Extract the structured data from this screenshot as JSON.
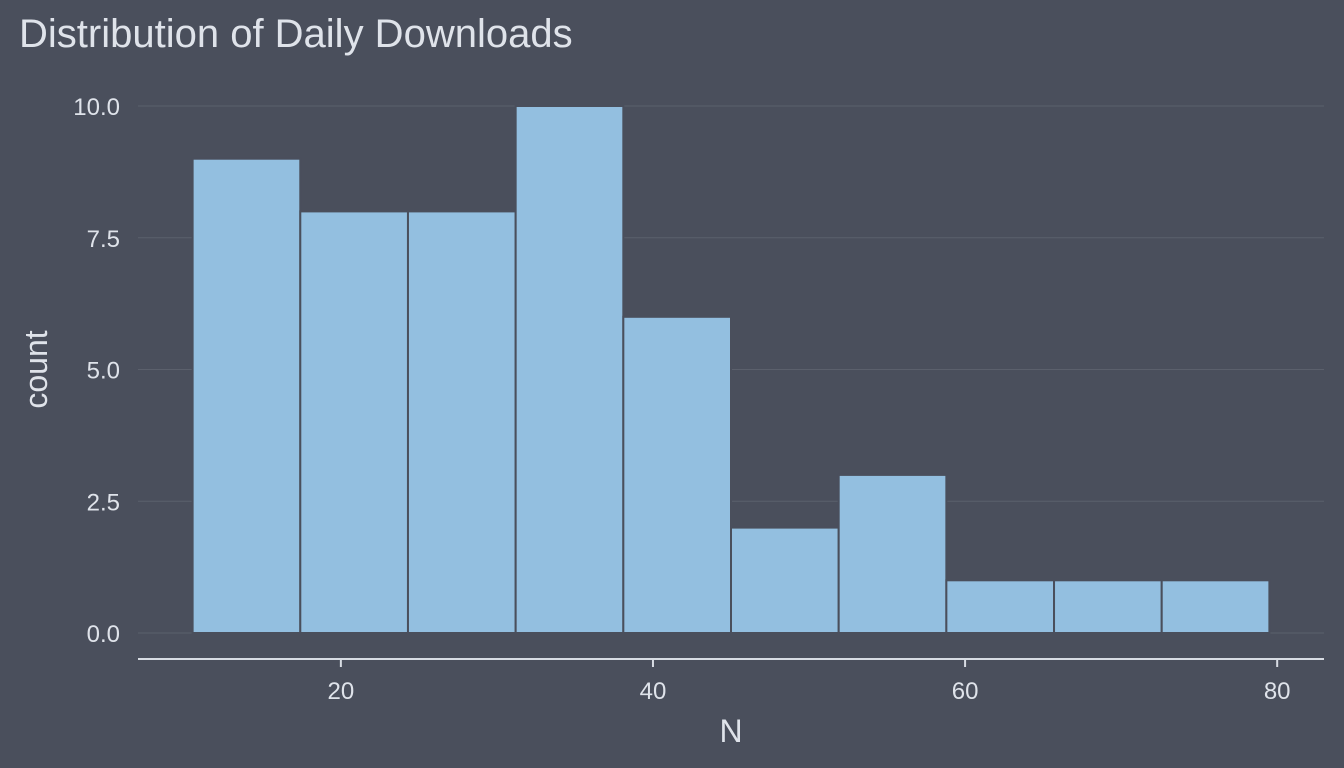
{
  "chart_data": {
    "type": "bar",
    "title": "Distribution of Daily Downloads",
    "xlabel": "N",
    "ylabel": "count",
    "bins": [
      {
        "x0": 10.5,
        "x1": 17.4,
        "count": 9
      },
      {
        "x0": 17.4,
        "x1": 24.3,
        "count": 8
      },
      {
        "x0": 24.3,
        "x1": 31.2,
        "count": 8
      },
      {
        "x0": 31.2,
        "x1": 38.1,
        "count": 10
      },
      {
        "x0": 38.1,
        "x1": 45.0,
        "count": 6
      },
      {
        "x0": 45.0,
        "x1": 51.9,
        "count": 2
      },
      {
        "x0": 51.9,
        "x1": 58.8,
        "count": 3
      },
      {
        "x0": 58.8,
        "x1": 65.7,
        "count": 1
      },
      {
        "x0": 65.7,
        "x1": 72.6,
        "count": 1
      },
      {
        "x0": 72.6,
        "x1": 79.5,
        "count": 1
      }
    ],
    "xlim": [
      7,
      83
    ],
    "ylim": [
      0,
      10
    ],
    "x_ticks": [
      20,
      40,
      60,
      80
    ],
    "y_ticks": [
      "0.0",
      "2.5",
      "5.0",
      "7.5",
      "10.0"
    ],
    "grid": "horizontal",
    "colors": {
      "background": "#4a4f5c",
      "bar_fill": "#93bfe0",
      "bar_outline": "#4a4f5c",
      "grid": "#5b606c",
      "axis_line": "#d8dce3",
      "text": "#dfe3ea"
    }
  }
}
